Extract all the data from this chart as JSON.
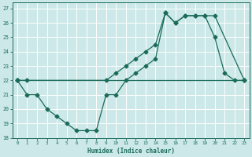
{
  "xlabel": "Humidex (Indice chaleur)",
  "bg_color": "#cce8e8",
  "grid_color": "#ffffff",
  "line_color": "#1a6b5a",
  "xlim": [
    -0.5,
    23.5
  ],
  "ylim": [
    18,
    27.4
  ],
  "xticks": [
    0,
    1,
    2,
    3,
    4,
    5,
    6,
    7,
    8,
    9,
    10,
    11,
    12,
    13,
    14,
    15,
    16,
    17,
    18,
    19,
    20,
    21,
    22,
    23
  ],
  "yticks": [
    18,
    19,
    20,
    21,
    22,
    23,
    24,
    25,
    26,
    27
  ],
  "line1_x": [
    0,
    1,
    2,
    3,
    4,
    5,
    6,
    7,
    8,
    9,
    10,
    11,
    12,
    13,
    14,
    15,
    16,
    17,
    18,
    19,
    20,
    21,
    22,
    23
  ],
  "line1_y": [
    22,
    21,
    21,
    20,
    19.5,
    19,
    18.5,
    18.5,
    18.5,
    21,
    21,
    22,
    22.5,
    23,
    23.5,
    26.7,
    26,
    26.5,
    26.5,
    26.5,
    25,
    22.5,
    22,
    22
  ],
  "line2_x": [
    0,
    1,
    9,
    10,
    11,
    12,
    13,
    14,
    15,
    16,
    17,
    18,
    19,
    20,
    23
  ],
  "line2_y": [
    22,
    22,
    22,
    22.5,
    23,
    23.5,
    24,
    24.5,
    26.7,
    26,
    26.5,
    26.5,
    26.5,
    26.5,
    22
  ],
  "line3_x": [
    0,
    23
  ],
  "line3_y": [
    22,
    22
  ]
}
